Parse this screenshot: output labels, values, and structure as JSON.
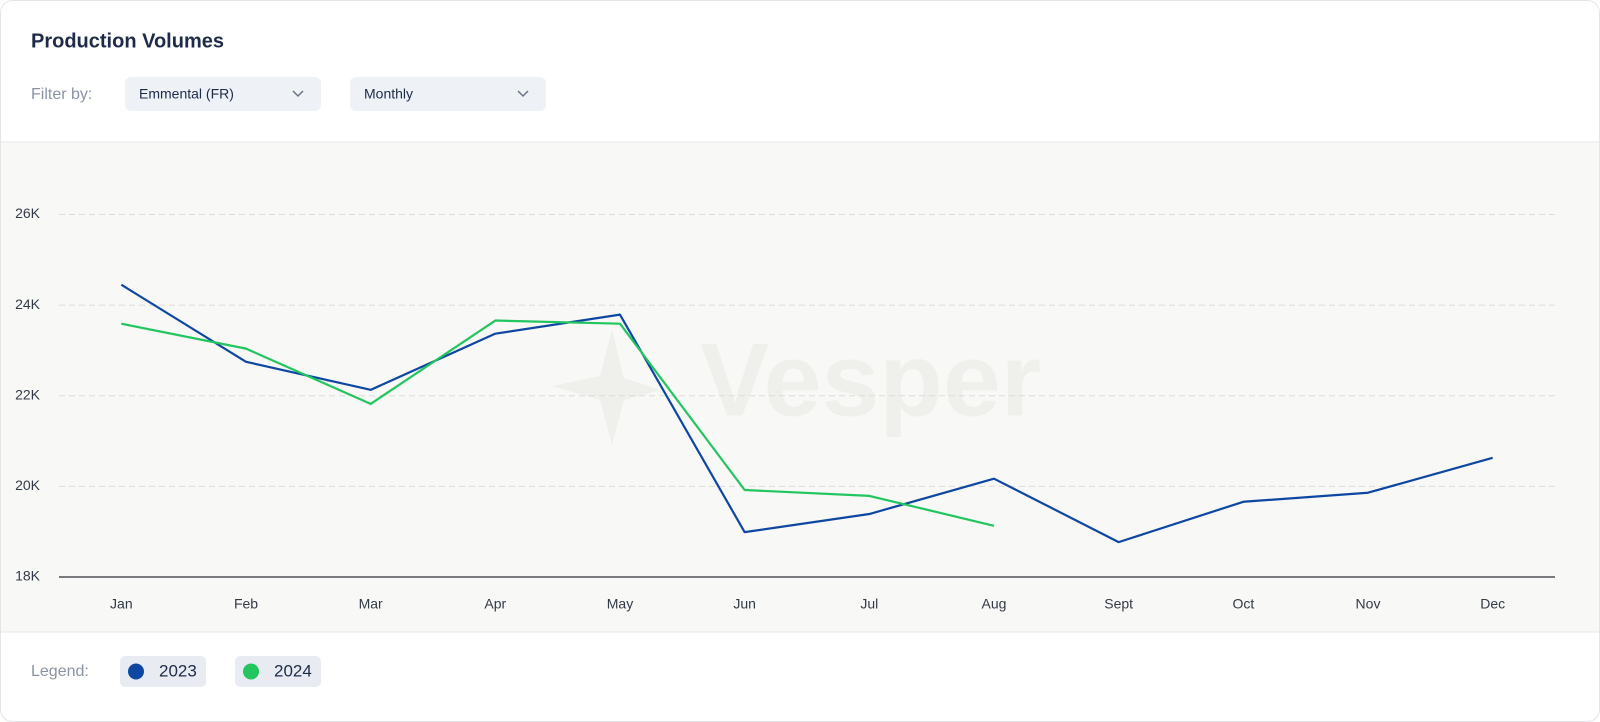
{
  "title": "Production Volumes",
  "filter_label": "Filter by:",
  "filters": [
    "Emmental (FR)",
    "Monthly"
  ],
  "legend_label": "Legend:",
  "watermark": "Vesper",
  "chart_data": {
    "type": "line",
    "categories": [
      "Jan",
      "Feb",
      "Mar",
      "Apr",
      "May",
      "Jun",
      "Jul",
      "Aug",
      "Sept",
      "Oct",
      "Nov",
      "Dec"
    ],
    "series": [
      {
        "name": "2023",
        "color": "#0d47a1",
        "values": [
          24450,
          22750,
          22130,
          23370,
          23790,
          18990,
          19390,
          20170,
          18770,
          19660,
          19860,
          20630
        ]
      },
      {
        "name": "2024",
        "color": "#22c55e",
        "values": [
          23590,
          23040,
          21820,
          23660,
          23590,
          19920,
          19790,
          19130,
          null,
          null,
          null,
          null
        ]
      }
    ],
    "ylim": [
      18000,
      27600
    ],
    "yticks": [
      {
        "value": 18000,
        "label": "18K"
      },
      {
        "value": 20000,
        "label": "20K"
      },
      {
        "value": 22000,
        "label": "22K"
      },
      {
        "value": 24000,
        "label": "24K"
      },
      {
        "value": 26000,
        "label": "26K"
      }
    ],
    "grid": true
  }
}
